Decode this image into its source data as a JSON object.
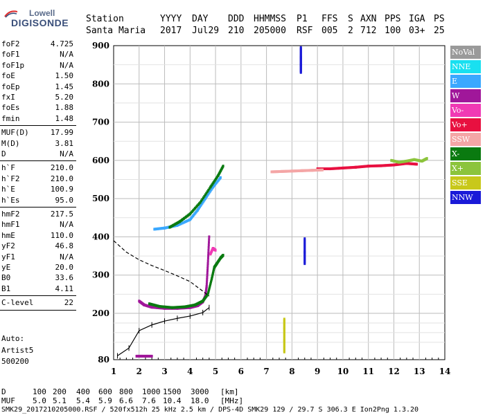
{
  "logo": {
    "line1": "Lowell",
    "line2": "DIGISONDE"
  },
  "header": {
    "cols": [
      {
        "label": "Station",
        "value": "Santa Maria"
      },
      {
        "label": "YYYY",
        "value": "2017"
      },
      {
        "label": "DAY",
        "value": "Jul29"
      },
      {
        "label": "DDD",
        "value": "210"
      },
      {
        "label": "HHMMSS",
        "value": "205000"
      },
      {
        "label": "P1",
        "value": "RSF"
      },
      {
        "label": "FFS",
        "value": "005"
      },
      {
        "label": "S",
        "value": "2"
      },
      {
        "label": "AXN",
        "value": "712"
      },
      {
        "label": "PPS",
        "value": "100"
      },
      {
        "label": "IGA",
        "value": "03+"
      },
      {
        "label": "PS",
        "value": "25"
      }
    ]
  },
  "params": [
    {
      "group": [
        {
          "label": "foF2",
          "value": "4.725"
        },
        {
          "label": "foF1",
          "value": "N/A"
        },
        {
          "label": "foF1p",
          "value": "N/A"
        },
        {
          "label": "foE",
          "value": "1.50"
        },
        {
          "label": "foEp",
          "value": "1.45"
        },
        {
          "label": "fxI",
          "value": "5.20"
        },
        {
          "label": "foEs",
          "value": "1.88"
        },
        {
          "label": "fmin",
          "value": "1.48"
        }
      ]
    },
    {
      "group": [
        {
          "label": "MUF(D)",
          "value": "17.99"
        },
        {
          "label": "M(D)",
          "value": "3.81"
        },
        {
          "label": "D",
          "value": "N/A"
        }
      ]
    },
    {
      "group": [
        {
          "label": "h`F",
          "value": "210.0"
        },
        {
          "label": "h`F2",
          "value": "210.0"
        },
        {
          "label": "h`E",
          "value": "100.9"
        },
        {
          "label": "h`Es",
          "value": "95.0"
        }
      ]
    },
    {
      "group": [
        {
          "label": "hmF2",
          "value": "217.5"
        },
        {
          "label": "hmF1",
          "value": "N/A"
        },
        {
          "label": "hmE",
          "value": "110.0"
        },
        {
          "label": "yF2",
          "value": "46.8"
        },
        {
          "label": "yF1",
          "value": "N/A"
        },
        {
          "label": "yE",
          "value": "20.0"
        },
        {
          "label": "B0",
          "value": "33.6"
        },
        {
          "label": "B1",
          "value": "4.11"
        }
      ]
    },
    {
      "group": [
        {
          "label": "C-level",
          "value": "22"
        }
      ]
    }
  ],
  "auto": {
    "line1": "Auto:",
    "line2": "Artist5",
    "line3": "500200"
  },
  "legend": [
    {
      "label": "NoVal",
      "color": "#9a9a9a"
    },
    {
      "label": "NNE",
      "color": "#19e0f0"
    },
    {
      "label": "E",
      "color": "#3aa8ff"
    },
    {
      "label": "W",
      "color": "#a0179a"
    },
    {
      "label": "Vo-",
      "color": "#f03ab4"
    },
    {
      "label": "Vo+",
      "color": "#e81040"
    },
    {
      "label": "SSW",
      "color": "#f4a6a6"
    },
    {
      "label": "X-",
      "color": "#0a7a10"
    },
    {
      "label": "X+",
      "color": "#8cc43c"
    },
    {
      "label": "SSE",
      "color": "#c8c81a"
    },
    {
      "label": "NNW",
      "color": "#1a1ad8"
    }
  ],
  "footer": {
    "d_label": "D",
    "d_values": [
      "100",
      "200",
      "400",
      "600",
      "800",
      "1000",
      "1500",
      "3000",
      "[km]"
    ],
    "muf_label": "MUF",
    "muf_values": [
      "5.0",
      "5.1",
      "5.4",
      "5.9",
      "6.6",
      "7.6",
      "10.4",
      "18.0",
      "[MHz]"
    ],
    "info": "SMK29_2017210205000.RSF / 520fx512h 25 kHz 2.5 km / DPS-4D SMK29 129 / 29.7 S 306.3 E Ion2Png 1.3.20"
  },
  "chart_data": {
    "type": "scatter",
    "x_ticks": [
      "1",
      "2",
      "3",
      "4",
      "5",
      "6",
      "7",
      "8",
      "9",
      "10",
      "11",
      "12",
      "13",
      "14"
    ],
    "y_ticks": [
      "80",
      "200",
      "300",
      "400",
      "500",
      "600",
      "700",
      "800",
      "900"
    ],
    "xlim": [
      1,
      14
    ],
    "ylim": [
      80,
      900
    ],
    "grid": true,
    "legend_position": "right",
    "traces": [
      {
        "name": "W",
        "color": "#a0179a",
        "points": [
          [
            2.0,
            232
          ],
          [
            2.2,
            222
          ],
          [
            2.5,
            216
          ],
          [
            3.0,
            213
          ],
          [
            3.5,
            213
          ],
          [
            4.0,
            215
          ],
          [
            4.3,
            220
          ],
          [
            4.5,
            230
          ],
          [
            4.6,
            245
          ],
          [
            4.65,
            270
          ],
          [
            4.7,
            330
          ],
          [
            4.75,
            400
          ]
        ]
      },
      {
        "name": "X-",
        "color": "#0a7a10",
        "points": [
          [
            2.4,
            225
          ],
          [
            2.8,
            218
          ],
          [
            3.3,
            215
          ],
          [
            3.8,
            217
          ],
          [
            4.2,
            222
          ],
          [
            4.5,
            232
          ],
          [
            4.7,
            250
          ],
          [
            4.85,
            290
          ],
          [
            4.95,
            320
          ],
          [
            5.05,
            330
          ],
          [
            5.2,
            345
          ],
          [
            5.3,
            352
          ]
        ]
      },
      {
        "name": "Vo-",
        "color": "#f03ab4",
        "points": [
          [
            4.8,
            355
          ],
          [
            4.9,
            370
          ],
          [
            5.0,
            365
          ]
        ]
      },
      {
        "name": "E",
        "color": "#3aa8ff",
        "points": [
          [
            2.6,
            420
          ],
          [
            3.0,
            423
          ],
          [
            3.5,
            430
          ],
          [
            4.0,
            445
          ],
          [
            4.3,
            470
          ],
          [
            4.6,
            500
          ],
          [
            4.9,
            530
          ],
          [
            5.2,
            555
          ]
        ]
      },
      {
        "name": "X-",
        "color": "#0a7a10",
        "points": [
          [
            3.2,
            425
          ],
          [
            3.6,
            440
          ],
          [
            4.0,
            460
          ],
          [
            4.4,
            490
          ],
          [
            4.8,
            530
          ],
          [
            5.1,
            560
          ],
          [
            5.3,
            585
          ]
        ]
      },
      {
        "name": "Vo+",
        "color": "#e81040",
        "points": [
          [
            9.0,
            578
          ],
          [
            9.5,
            578
          ],
          [
            10.0,
            580
          ],
          [
            10.5,
            582
          ],
          [
            11.0,
            585
          ],
          [
            11.5,
            586
          ],
          [
            12.0,
            588
          ],
          [
            12.5,
            592
          ],
          [
            12.9,
            590
          ]
        ]
      },
      {
        "name": "SSW",
        "color": "#f4a6a6",
        "points": [
          [
            7.2,
            570
          ],
          [
            7.6,
            571
          ],
          [
            8.0,
            572
          ],
          [
            8.4,
            573
          ],
          [
            8.8,
            574
          ],
          [
            9.2,
            575
          ]
        ]
      },
      {
        "name": "X+",
        "color": "#8cc43c",
        "points": [
          [
            11.9,
            600
          ],
          [
            12.2,
            595
          ],
          [
            12.5,
            598
          ],
          [
            12.8,
            602
          ],
          [
            13.1,
            598
          ],
          [
            13.3,
            605
          ]
        ]
      },
      {
        "name": "Es",
        "color": "#a0179a",
        "points": [
          [
            1.9,
            89
          ],
          [
            2.1,
            89
          ],
          [
            2.3,
            89
          ],
          [
            2.5,
            89
          ]
        ]
      },
      {
        "name": "NNW",
        "color": "#1a1ad8",
        "points": [
          [
            8.35,
            830
          ],
          [
            8.35,
            850
          ],
          [
            8.35,
            870
          ],
          [
            8.35,
            895
          ]
        ]
      },
      {
        "name": "NNW",
        "color": "#1a1ad8",
        "points": [
          [
            8.5,
            330
          ],
          [
            8.5,
            360
          ],
          [
            8.5,
            395
          ]
        ]
      },
      {
        "name": "SSE",
        "color": "#c8c81a",
        "points": [
          [
            7.7,
            100
          ],
          [
            7.7,
            130
          ],
          [
            7.7,
            160
          ],
          [
            7.7,
            185
          ]
        ]
      }
    ],
    "profile": {
      "color": "#000000",
      "points": [
        [
          1.15,
          90
        ],
        [
          1.6,
          110
        ],
        [
          2.0,
          155
        ],
        [
          2.5,
          170
        ],
        [
          3.0,
          180
        ],
        [
          3.5,
          187
        ],
        [
          4.0,
          193
        ],
        [
          4.5,
          202
        ],
        [
          4.75,
          215
        ]
      ]
    },
    "dashed": {
      "color": "#000000",
      "points": [
        [
          1.0,
          390
        ],
        [
          1.5,
          360
        ],
        [
          2.0,
          340
        ],
        [
          2.5,
          325
        ],
        [
          3.0,
          312
        ],
        [
          3.5,
          298
        ],
        [
          4.0,
          283
        ],
        [
          4.5,
          258
        ],
        [
          4.75,
          245
        ]
      ]
    }
  }
}
